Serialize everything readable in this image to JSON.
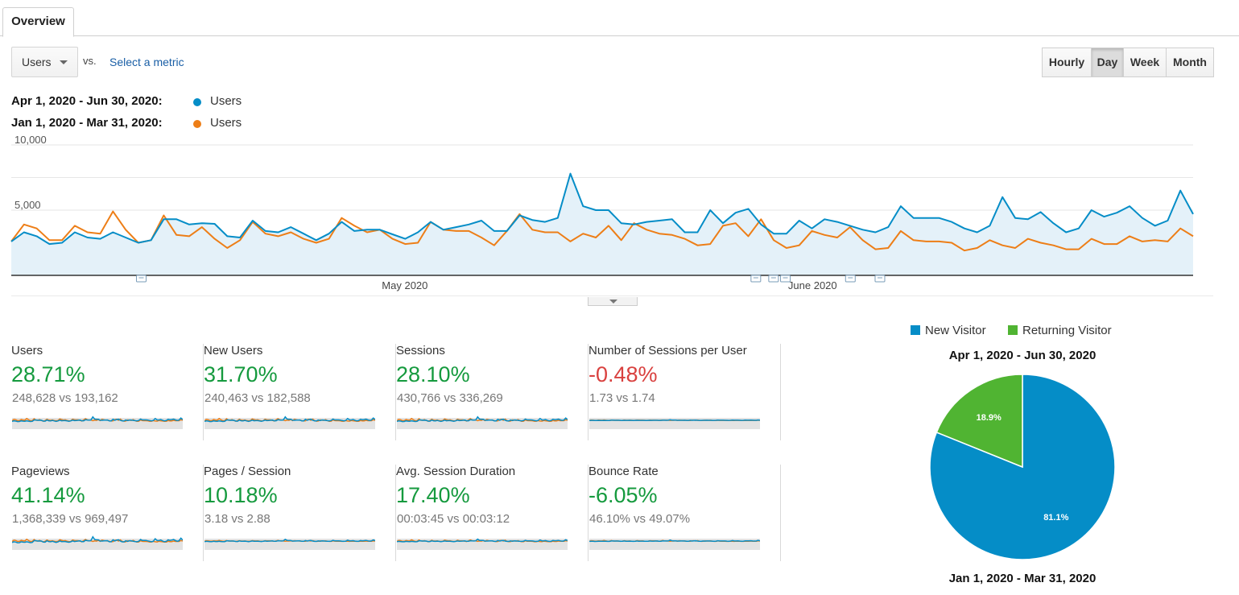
{
  "tab": {
    "label": "Overview"
  },
  "controls": {
    "metric_select": "Users",
    "vs_label": "vs.",
    "select_metric_link": "Select a metric",
    "granularity": [
      {
        "label": "Hourly",
        "active": false
      },
      {
        "label": "Day",
        "active": true
      },
      {
        "label": "Week",
        "active": false
      },
      {
        "label": "Month",
        "active": false
      }
    ]
  },
  "legend": [
    {
      "range": "Apr 1, 2020 - Jun 30, 2020:",
      "series": "Users",
      "color": "#058dc7"
    },
    {
      "range": "Jan 1, 2020 - Mar 31, 2020:",
      "series": "Users",
      "color": "#ed7e17"
    }
  ],
  "chart_data": {
    "type": "line",
    "y_ticks": [
      "10,000",
      "5,000"
    ],
    "ylim": [
      0,
      10000
    ],
    "x_labels": [
      "May 2020",
      "June 2020"
    ],
    "grid": true,
    "series": [
      {
        "name": "Users",
        "color": "#058dc7",
        "fill": true,
        "values": [
          2600,
          3300,
          3000,
          2400,
          2500,
          3300,
          2900,
          2800,
          3300,
          2900,
          2500,
          2700,
          4300,
          4300,
          3900,
          4000,
          3950,
          3000,
          2900,
          4200,
          3400,
          3300,
          3700,
          3200,
          2700,
          3200,
          4100,
          3400,
          3500,
          3500,
          3150,
          2800,
          3300,
          4100,
          3500,
          3700,
          3900,
          4200,
          3400,
          3400,
          4600,
          4250,
          4100,
          4400,
          7800,
          5300,
          5000,
          5000,
          4000,
          3900,
          4100,
          4200,
          4300,
          3300,
          3300,
          5000,
          4000,
          4800,
          5100,
          3900,
          3200,
          3200,
          4200,
          3600,
          4300,
          4100,
          3800,
          3500,
          3300,
          3700,
          5300,
          4400,
          4400,
          4400,
          4100,
          3600,
          3300,
          3800,
          6000,
          4400,
          4300,
          4850,
          4000,
          3300,
          3600,
          5000,
          4500,
          4800,
          5300,
          4400,
          3800,
          4200,
          6500,
          4700
        ]
      },
      {
        "name": "Users",
        "color": "#ed7e17",
        "fill": false,
        "values": [
          2600,
          3900,
          3600,
          2700,
          2700,
          3800,
          3300,
          3200,
          4900,
          3500,
          2500,
          2700,
          4600,
          3100,
          3000,
          3700,
          2800,
          2100,
          2700,
          4100,
          3200,
          3000,
          3300,
          2800,
          2500,
          2800,
          4400,
          3800,
          3300,
          3500,
          2800,
          2400,
          2500,
          4100,
          3500,
          3400,
          3400,
          2900,
          2300,
          3400,
          4700,
          3500,
          3300,
          3300,
          2600,
          3200,
          2900,
          3800,
          2700,
          4000,
          3500,
          3200,
          3100,
          2800,
          2300,
          2400,
          3800,
          4000,
          3000,
          4300,
          2700,
          2100,
          2300,
          3400,
          3100,
          2900,
          3700,
          2700,
          2000,
          2100,
          3400,
          2700,
          2600,
          2600,
          2500,
          1900,
          2100,
          2700,
          2300,
          2100,
          2800,
          2500,
          2300,
          2000,
          2000,
          2800,
          2400,
          2400,
          3000,
          2600,
          2700,
          2600,
          3600,
          3000
        ]
      }
    ],
    "annotation_positions": [
      0.11,
      0.63,
      0.645,
      0.655,
      0.71,
      0.735
    ]
  },
  "scorecards": [
    {
      "name": "Users",
      "pct": "28.71%",
      "trend": "pos",
      "cmp": "248,628 vs 193,162"
    },
    {
      "name": "New Users",
      "pct": "31.70%",
      "trend": "pos",
      "cmp": "240,463 vs 182,588"
    },
    {
      "name": "Sessions",
      "pct": "28.10%",
      "trend": "pos",
      "cmp": "430,766 vs 336,269"
    },
    {
      "name": "Number of Sessions per User",
      "pct": "-0.48%",
      "trend": "neg",
      "cmp": "1.73 vs 1.74"
    },
    {
      "name": "Pageviews",
      "pct": "41.14%",
      "trend": "pos",
      "cmp": "1,368,339 vs 969,497"
    },
    {
      "name": "Pages / Session",
      "pct": "10.18%",
      "trend": "pos",
      "cmp": "3.18 vs 2.88"
    },
    {
      "name": "Avg. Session Duration",
      "pct": "17.40%",
      "trend": "pos",
      "cmp": "00:03:45 vs 00:03:12"
    },
    {
      "name": "Bounce Rate",
      "pct": "-6.05%",
      "trend": "pos",
      "cmp": "46.10% vs 49.07%"
    }
  ],
  "pie": {
    "legend": [
      {
        "label": "New Visitor",
        "color": "#058dc7"
      },
      {
        "label": "Returning Visitor",
        "color": "#50b432"
      }
    ],
    "title_current": "Apr 1, 2020 - Jun 30, 2020",
    "title_previous": "Jan 1, 2020 - Mar 31, 2020",
    "slices": [
      {
        "label": "New Visitor",
        "value": 81.1,
        "text": "81.1%",
        "color": "#058dc7"
      },
      {
        "label": "Returning Visitor",
        "value": 18.9,
        "text": "18.9%",
        "color": "#50b432"
      }
    ]
  }
}
